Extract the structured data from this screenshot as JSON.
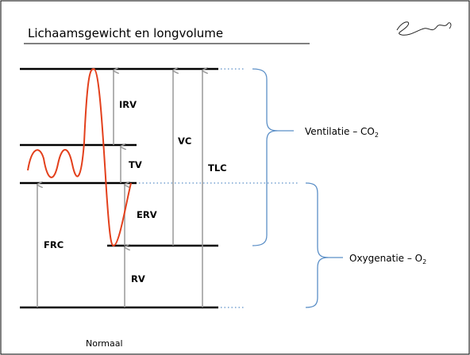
{
  "header": {
    "title": "Lichaamsgewicht en longvolume"
  },
  "labels": {
    "irv": "IRV",
    "tv": "TV",
    "erv": "ERV",
    "rv": "RV",
    "frc": "FRC",
    "vc": "VC",
    "tlc": "TLC"
  },
  "groups": [
    {
      "text": "Ventilatie – CO",
      "sub": "2"
    },
    {
      "text": "Oxygenatie – O",
      "sub": "2"
    }
  ],
  "caption": "Normaal"
}
